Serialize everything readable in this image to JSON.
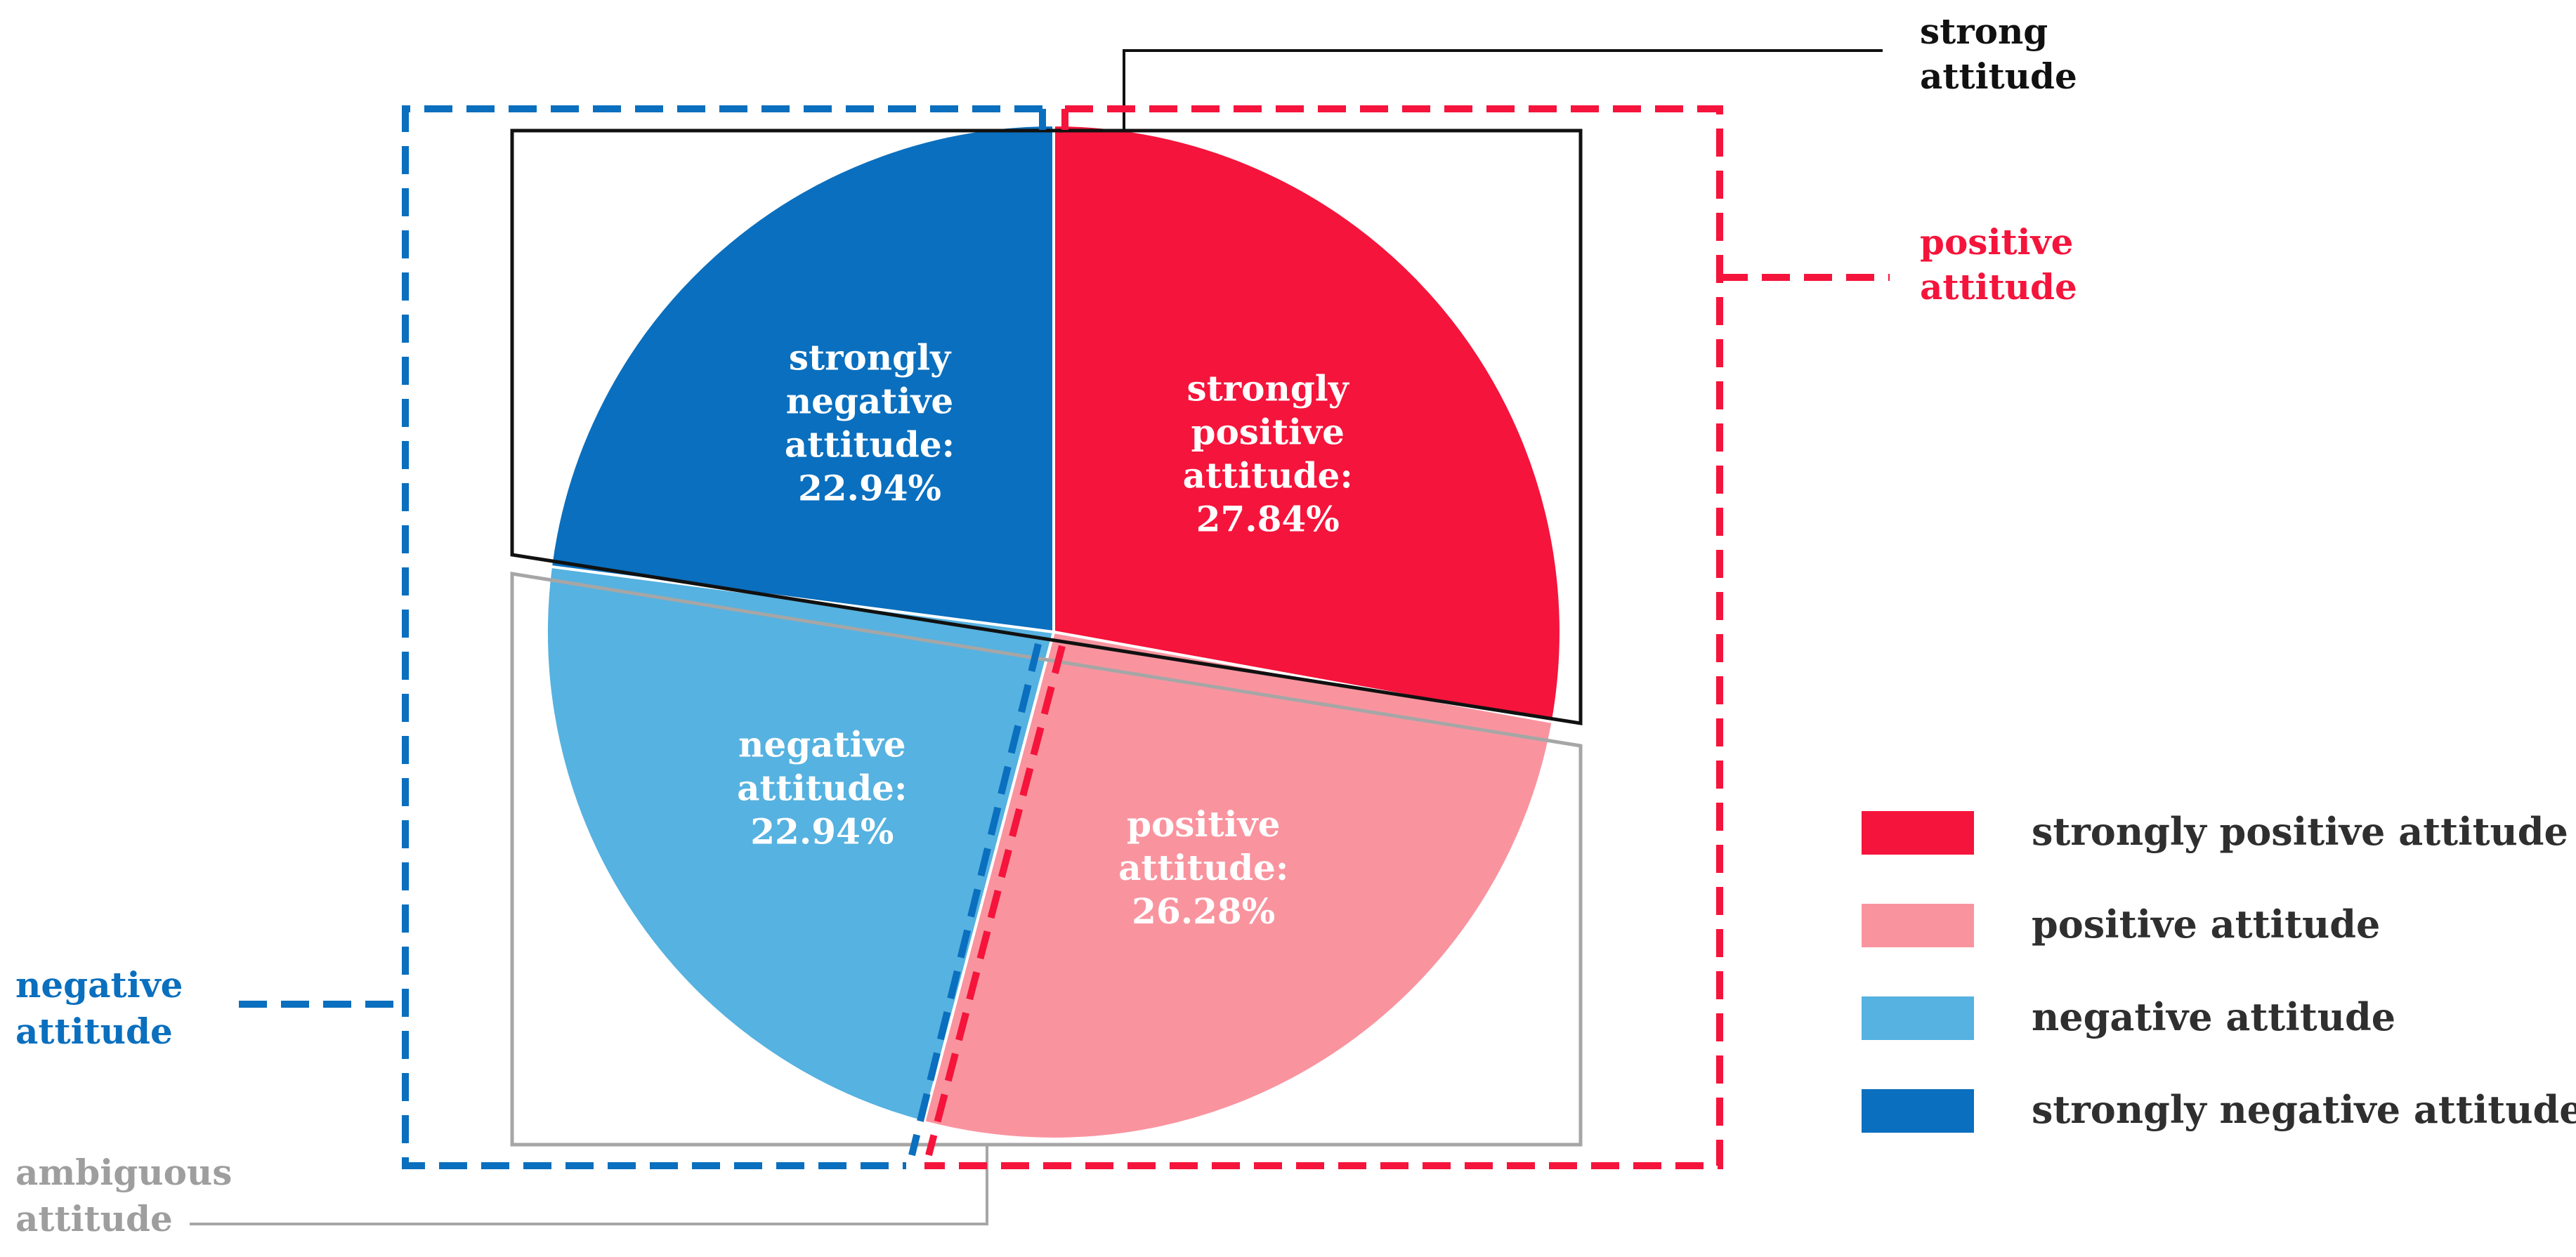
{
  "chart_data": {
    "type": "pie",
    "title": "",
    "slices": [
      {
        "name": "strongly positive attitude",
        "value": 27.84,
        "color": "#f5143b",
        "label": [
          "strongly",
          "positive",
          "attitude:",
          "27.84%"
        ]
      },
      {
        "name": "positive attitude",
        "value": 26.28,
        "color": "#f9949f",
        "label": [
          "positive",
          "attitude:",
          "26.28%"
        ]
      },
      {
        "name": "negative attitude",
        "value": 22.94,
        "color": "#56b2e0",
        "label": [
          "negative",
          "attitude:",
          "22.94%"
        ]
      },
      {
        "name": "strongly negative attitude",
        "value": 22.94,
        "color": "#0a6fbe",
        "label": [
          "strongly",
          "negative",
          "attitude:",
          "22.94%"
        ]
      }
    ],
    "legend": [
      {
        "label": "strongly positive attitude",
        "color": "#f5143b"
      },
      {
        "label": "positive attitude",
        "color": "#f9949f"
      },
      {
        "label": "negative attitude",
        "color": "#56b2e0"
      },
      {
        "label": "strongly negative attitude",
        "color": "#0a6fbe"
      }
    ],
    "legend_position": "right",
    "groupings": [
      {
        "name": "strong attitude",
        "lines": [
          "strong",
          "attitude"
        ],
        "color": "#111111",
        "style": "solid"
      },
      {
        "name": "positive attitude",
        "lines": [
          "positive",
          "attitude"
        ],
        "color": "#f5143b",
        "style": "dashed"
      },
      {
        "name": "negative attitude",
        "lines": [
          "negative",
          "attitude"
        ],
        "color": "#0a6fbe",
        "style": "dashed"
      },
      {
        "name": "ambiguous attitude",
        "lines": [
          "ambiguous",
          "attitude"
        ],
        "color": "#9e9e9e",
        "style": "solid"
      }
    ]
  }
}
